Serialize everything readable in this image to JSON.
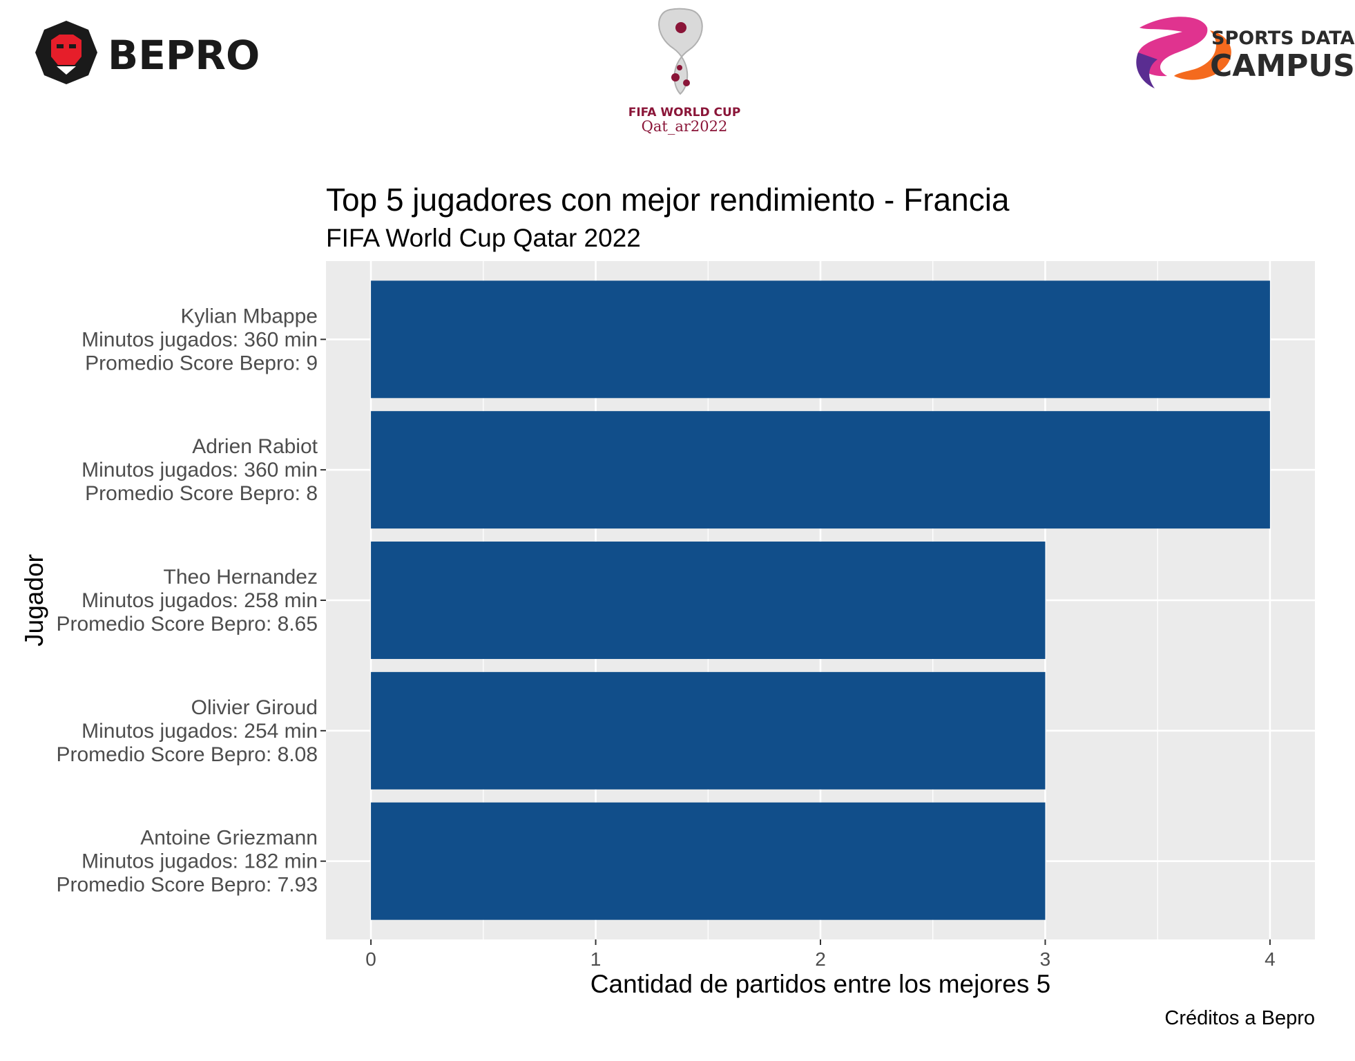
{
  "logos": {
    "bepro": {
      "text": "BEPRO",
      "icon": "bepro-lion-icon",
      "color": "#1a1a1a",
      "accent": "#e61e2a"
    },
    "worldcup": {
      "line1": "FIFA WORLD CUP",
      "line2": "Qat_ar2022",
      "icon": "worldcup-trophy-emblem-icon",
      "color": "#8a1538"
    },
    "sdc": {
      "line1": "SPORTS DATA",
      "line2": "CAMPUS",
      "icon": "sports-data-campus-swirl-icon",
      "color": "#2b2b2b"
    }
  },
  "chart_data": {
    "type": "bar",
    "orientation": "horizontal",
    "title": "Top 5 jugadores con mejor rendimiento - Francia",
    "subtitle": "FIFA World Cup Qatar 2022",
    "xlabel": "Cantidad de partidos entre los mejores 5",
    "ylabel": "Jugador",
    "caption": "Créditos a Bepro",
    "xlim": [
      -0.2,
      4.2
    ],
    "xticks": [
      0,
      1,
      2,
      3,
      4
    ],
    "grid": true,
    "bar_color": "#114e8a",
    "panel_color": "#ebebeb",
    "categories": [
      {
        "name": "Kylian Mbappe",
        "minutes": "Minutos jugados: 360 min",
        "score": "Promedio Score Bepro: 9"
      },
      {
        "name": "Adrien Rabiot",
        "minutes": "Minutos jugados: 360 min",
        "score": "Promedio Score Bepro: 8"
      },
      {
        "name": "Theo Hernandez",
        "minutes": "Minutos jugados: 258 min",
        "score": "Promedio Score Bepro: 8.65"
      },
      {
        "name": "Olivier Giroud",
        "minutes": "Minutos jugados: 254 min",
        "score": "Promedio Score Bepro: 8.08"
      },
      {
        "name": "Antoine Griezmann",
        "minutes": "Minutos jugados: 182 min",
        "score": "Promedio Score Bepro: 7.93"
      }
    ],
    "values": [
      4,
      4,
      3,
      3,
      3
    ]
  }
}
